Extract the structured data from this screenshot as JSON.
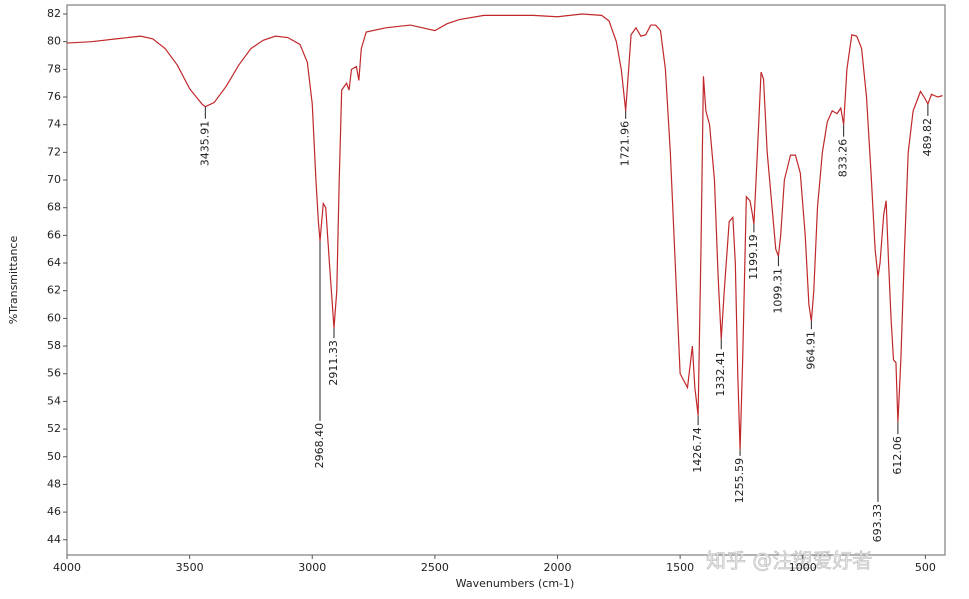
{
  "chart_data": {
    "type": "line",
    "xlabel": "Wavenumbers (cm-1)",
    "ylabel": "%Transmittance",
    "xlim": [
      4000,
      420
    ],
    "ylim": [
      42.9,
      82.65
    ],
    "xticks": [
      4000,
      3500,
      3000,
      2500,
      2000,
      1500,
      1000,
      500
    ],
    "yticks": [
      44,
      46,
      48,
      50,
      52,
      54,
      56,
      58,
      60,
      62,
      64,
      66,
      68,
      70,
      72,
      74,
      76,
      78,
      80,
      82
    ],
    "x": [
      4000,
      3900,
      3800,
      3700,
      3650,
      3600,
      3550,
      3500,
      3450,
      3435.91,
      3400,
      3350,
      3300,
      3250,
      3200,
      3150,
      3100,
      3050,
      3020,
      3000,
      2985,
      2975,
      2968.4,
      2955,
      2945,
      2930,
      2911.33,
      2900,
      2890,
      2880,
      2860,
      2850,
      2840,
      2820,
      2810,
      2800,
      2780,
      2700,
      2600,
      2500,
      2450,
      2400,
      2300,
      2200,
      2100,
      2000,
      1900,
      1820,
      1790,
      1760,
      1740,
      1721.96,
      1710,
      1700,
      1680,
      1660,
      1640,
      1620,
      1600,
      1580,
      1560,
      1540,
      1520,
      1500,
      1470,
      1450,
      1440,
      1426.74,
      1415,
      1405,
      1395,
      1380,
      1360,
      1345,
      1332.41,
      1320,
      1300,
      1285,
      1275,
      1265,
      1255.59,
      1245,
      1230,
      1215,
      1205,
      1199.19,
      1185,
      1170,
      1160,
      1145,
      1125,
      1110,
      1099.31,
      1090,
      1075,
      1050,
      1030,
      1010,
      990,
      975,
      964.91,
      955,
      940,
      920,
      900,
      880,
      860,
      845,
      833.26,
      820,
      800,
      780,
      760,
      740,
      720,
      705,
      693.33,
      685,
      670,
      660,
      650,
      640,
      630,
      620,
      612.06,
      600,
      585,
      570,
      550,
      520,
      505,
      489.82,
      475,
      450,
      430
    ],
    "series": [
      {
        "color": "#c0282a",
        "values": [
          79.9,
          80.0,
          80.2,
          80.4,
          80.2,
          79.5,
          78.3,
          76.6,
          75.5,
          75.3,
          75.6,
          76.8,
          78.3,
          79.5,
          80.1,
          80.4,
          80.3,
          79.8,
          78.5,
          75.5,
          70,
          67,
          65.6,
          68.3,
          68.0,
          64,
          59.3,
          62,
          70,
          76.5,
          77.0,
          76.5,
          78,
          78.2,
          77.2,
          79.5,
          80.7,
          81.0,
          81.2,
          80.8,
          81.3,
          81.6,
          81.9,
          81.9,
          81.9,
          81.8,
          82.0,
          81.9,
          81.5,
          80.0,
          78,
          75.0,
          78,
          80.5,
          81.0,
          80.4,
          80.5,
          81.2,
          81.2,
          80.8,
          78,
          72,
          64,
          56,
          55,
          58,
          55,
          53.0,
          65,
          77.5,
          75,
          74,
          70,
          63,
          58.5,
          62,
          67,
          67.3,
          64,
          56,
          50.5,
          57,
          68.8,
          68.5,
          67.5,
          66.8,
          72,
          77.8,
          77.3,
          72,
          68,
          65,
          64.5,
          66,
          70,
          71.8,
          71.8,
          70.5,
          66,
          61,
          59.8,
          62,
          68,
          72,
          74.2,
          75,
          74.8,
          75.2,
          74,
          78,
          80.5,
          80.4,
          79.5,
          76,
          70,
          65,
          63,
          64,
          67.5,
          68.5,
          64,
          60,
          57,
          56.8,
          52.5,
          57,
          65,
          72,
          75,
          76.4,
          76.0,
          75.5,
          76.2,
          76.0,
          76.1
        ]
      }
    ],
    "annotations": [
      {
        "text": "3435.91",
        "x": 3435.91,
        "y": 75.3
      },
      {
        "text": "2968.40",
        "x": 2968.4,
        "y": 65.6
      },
      {
        "text": "2911.33",
        "x": 2911.33,
        "y": 59.3
      },
      {
        "text": "1721.96",
        "x": 1721.96,
        "y": 75.0
      },
      {
        "text": "1426.74",
        "x": 1426.74,
        "y": 53.0
      },
      {
        "text": "1332.41",
        "x": 1332.41,
        "y": 58.5
      },
      {
        "text": "1255.59",
        "x": 1255.59,
        "y": 50.5
      },
      {
        "text": "1199.19",
        "x": 1199.19,
        "y": 66.8
      },
      {
        "text": "1099.31",
        "x": 1099.31,
        "y": 64.5
      },
      {
        "text": "964.91",
        "x": 964.91,
        "y": 59.8
      },
      {
        "text": "833.26",
        "x": 833.26,
        "y": 74.0
      },
      {
        "text": "693.33",
        "x": 693.33,
        "y": 63.0
      },
      {
        "text": "612.06",
        "x": 612.06,
        "y": 52.5
      },
      {
        "text": "489.82",
        "x": 489.82,
        "y": 75.5
      }
    ]
  },
  "watermark": "知乎 @注塑爱好者"
}
